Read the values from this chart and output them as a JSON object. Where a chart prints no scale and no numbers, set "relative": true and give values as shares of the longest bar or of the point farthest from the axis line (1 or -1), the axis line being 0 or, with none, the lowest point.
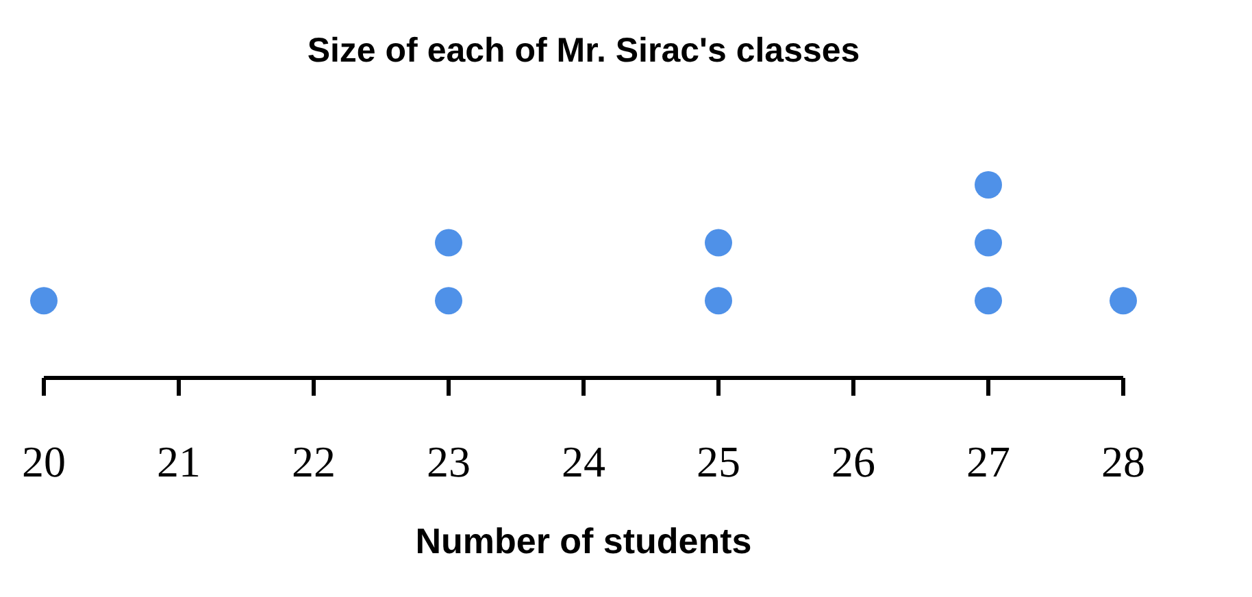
{
  "chart_data": {
    "type": "scatter",
    "title": "Size of each of Mr. Sirac's classes",
    "xlabel": "Number of students",
    "x": [
      20,
      23,
      23,
      25,
      25,
      27,
      27,
      27,
      28
    ],
    "series": [
      {
        "color": "#4f91e8",
        "values": [
          0.4,
          0.4,
          0.7,
          0.4,
          0.7,
          0.4,
          0.7,
          1,
          0.4
        ]
      }
    ],
    "relative": true,
    "marker": "circle",
    "xlim": [
      20,
      28
    ],
    "xticks": [
      20,
      21,
      22,
      23,
      24,
      25,
      26,
      27,
      28
    ]
  }
}
